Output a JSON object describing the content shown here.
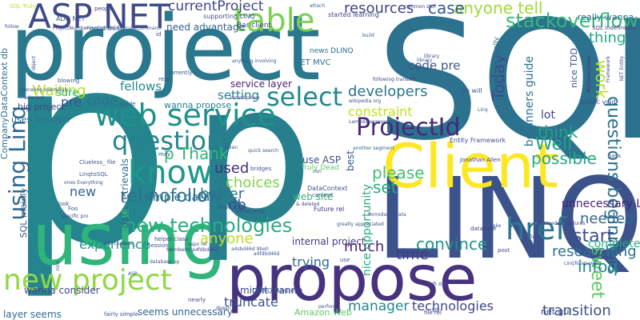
{
  "words": [
    {
      "text": "p",
      "color": "#25858e"
    },
    {
      "text": "SQL",
      "color": "#2c718e"
    },
    {
      "text": "project",
      "color": "#2a788e"
    },
    {
      "text": "using",
      "color": "#2fb47c"
    },
    {
      "text": "LINQ",
      "color": "#3b528b"
    },
    {
      "text": "propose",
      "color": "#46327e"
    },
    {
      "text": "Client",
      "color": "#fde725"
    },
    {
      "text": "p",
      "color": "#277f8e"
    },
    {
      "text": "ASP NET",
      "color": "#3e4a89"
    },
    {
      "text": "table",
      "color": "#7ad151"
    },
    {
      "text": "web service",
      "color": "#21918c"
    },
    {
      "text": "question",
      "color": "#25848e"
    },
    {
      "text": "ProjectId",
      "color": "#482878"
    },
    {
      "text": "href",
      "color": "#2a788e"
    },
    {
      "text": "know",
      "color": "#1f988b"
    },
    {
      "text": "using Linq",
      "color": "#31688e"
    },
    {
      "text": "new project",
      "color": "#8fd744"
    },
    {
      "text": "select",
      "color": "#23898e"
    },
    {
      "text": "new technologies",
      "color": "#28ae80"
    },
    {
      "text": "rel nofollow",
      "color": "#2d708e"
    },
    {
      "text": "stackoverflow",
      "color": "#35b779"
    },
    {
      "text": "anyone tell",
      "color": "#a0da39"
    },
    {
      "text": "case",
      "color": "#38588c"
    },
    {
      "text": "resources",
      "color": "#414487"
    },
    {
      "text": "currentProject",
      "color": "#404688"
    },
    {
      "text": "Today",
      "color": "#3e4989"
    },
    {
      "text": "please",
      "color": "#44bf70"
    },
    {
      "text": "set",
      "color": "#26ad81"
    },
    {
      "text": "p Thank",
      "color": "#31b57b"
    },
    {
      "text": "questions beginners",
      "color": "#2d718e"
    },
    {
      "text": "Well",
      "color": "#20a386"
    },
    {
      "text": "think",
      "color": "#1fa088"
    },
    {
      "text": "possible",
      "color": "#22a785"
    },
    {
      "text": "start",
      "color": "#3d4e8a"
    },
    {
      "text": "work",
      "color": "#b5de2b"
    },
    {
      "text": "sweet",
      "color": "#5ec962"
    },
    {
      "text": "infoq",
      "color": "#23898e"
    },
    {
      "text": "needed",
      "color": "#31688e"
    },
    {
      "text": "convince",
      "color": "#20928c"
    },
    {
      "text": "transition",
      "color": "#3b528b"
    },
    {
      "text": "Waiting",
      "color": "#b8de29"
    },
    {
      "text": "constraint",
      "color": "#c2df23"
    },
    {
      "text": "developers",
      "color": "#2c728e"
    },
    {
      "text": "manager",
      "color": "#24868e"
    },
    {
      "text": "technologies",
      "color": "#3f4788"
    },
    {
      "text": "anyone",
      "color": "#bddf26"
    },
    {
      "text": "experience",
      "color": "#21918c"
    },
    {
      "text": "db",
      "color": "#3b518b"
    },
    {
      "text": "choices",
      "color": "#81d34d"
    },
    {
      "text": "better",
      "color": "#2a768e"
    },
    {
      "text": "simple data",
      "color": "#2d708e"
    },
    {
      "text": "used",
      "color": "#472f7d"
    },
    {
      "text": "time",
      "color": "#443a83"
    },
    {
      "text": "much",
      "color": "#481f70"
    },
    {
      "text": "trying",
      "color": "#2e6e8e"
    },
    {
      "text": "truncate",
      "color": "#3b528b"
    },
    {
      "text": "setting",
      "color": "#287c8e"
    },
    {
      "text": "fellows",
      "color": "#238a8d"
    },
    {
      "text": "code pre",
      "color": "#39568c"
    },
    {
      "text": "code",
      "color": "#2e6d8e"
    },
    {
      "text": "pre",
      "color": "#3b528b"
    },
    {
      "text": "sure",
      "color": "#35b779"
    },
    {
      "text": "thing",
      "color": "#21a685"
    },
    {
      "text": "lot",
      "color": "#3f4889"
    },
    {
      "text": "new",
      "color": "#33638d"
    },
    {
      "text": "researching",
      "color": "#2d708e"
    },
    {
      "text": "completely new",
      "color": "#29af7f"
    },
    {
      "text": "unnecessary Linq",
      "color": "#482475"
    },
    {
      "text": "beginners guide",
      "color": "#2c738e"
    },
    {
      "text": "nice opportunity",
      "color": "#25ab82"
    },
    {
      "text": "data retrievals",
      "color": "#2f6c8e"
    },
    {
      "text": "CompanyDataContext db",
      "color": "#2c728e"
    },
    {
      "text": "really wanna",
      "color": "#2d708e"
    },
    {
      "text": "need advantage",
      "color": "#33638d"
    },
    {
      "text": "service layer",
      "color": "#481f70"
    },
    {
      "text": "internal project",
      "color": "#453882"
    },
    {
      "text": "wanna propose",
      "color": "#26818e"
    },
    {
      "text": "wanna consider",
      "color": "#3e4989"
    },
    {
      "text": "layer seems",
      "color": "#2f6c8e"
    },
    {
      "text": "seems unnecessary",
      "color": "#33638d"
    },
    {
      "text": "might wanna",
      "color": "#414487"
    },
    {
      "text": "use ASP",
      "color": "#3d4e8a"
    },
    {
      "text": "web site",
      "color": "#35b779"
    },
    {
      "text": "best",
      "color": "#39568c"
    },
    {
      "text": "uses Amazon",
      "color": "#2e6f8e"
    },
    {
      "text": "big project",
      "color": "#414487"
    },
    {
      "text": "Amazon Web",
      "color": "#5ec962"
    },
    {
      "text": "net gui",
      "color": "#3e4a89"
    },
    {
      "text": "nice TDD",
      "color": "#3a548c"
    },
    {
      "text": "SQL mainly",
      "color": "#39568c"
    },
    {
      "text": "Entity Framework",
      "color": "#3b528b"
    },
    {
      "text": "Truly Dead",
      "color": "#5ec962"
    },
    {
      "text": "NET MVC",
      "color": "#2e6e8e"
    },
    {
      "text": "DataContext",
      "color": "#39568c"
    },
    {
      "text": "news DLINQ",
      "color": "#2e6f8e"
    },
    {
      "text": "supporting LINQ",
      "color": "#3b528b"
    },
    {
      "text": "Bar client",
      "color": "#414487"
    },
    {
      "text": "started learning",
      "color": "#3f4788"
    },
    {
      "text": "public void",
      "color": "#3b528b"
    },
    {
      "text": "op will",
      "color": "#38598c"
    },
    {
      "text": "SQL indefinitely",
      "color": "#443983"
    },
    {
      "text": "ADO NET",
      "color": "#39568c"
    },
    {
      "text": "good thing",
      "color": "#33638d"
    },
    {
      "text": "manager actually",
      "color": "#2e6f8e"
    },
    {
      "text": "Future rel",
      "color": "#46327e"
    },
    {
      "text": "DLINQ Future",
      "color": "#33638d"
    },
    {
      "text": "aspx rel",
      "color": "#3e4989"
    },
    {
      "text": "dead end",
      "color": "#3b528b"
    },
    {
      "text": "stored procs",
      "color": "#414487"
    },
    {
      "text": "LinqtoSQL",
      "color": "#39568c"
    },
    {
      "text": "Clueless_ file",
      "color": "#3b528b"
    },
    {
      "text": "file rel",
      "color": "#46327e"
    },
    {
      "text": "perfore",
      "color": "#3b528b"
    },
    {
      "text": "database",
      "color": "#414487"
    },
    {
      "text": "helper class",
      "color": "#3e4989"
    },
    {
      "text": "Session",
      "color": "#39568c"
    },
    {
      "text": "YourContext ExecuteCommand",
      "color": "#3b528b"
    },
    {
      "text": "ProjectNumber",
      "color": "#414487"
    },
    {
      "text": "Jonathan Allen",
      "color": "#453882"
    },
    {
      "text": "Lambda expression",
      "color": "#3b528b"
    },
    {
      "text": "wikipedia org",
      "color": "#39568c"
    },
    {
      "text": "another segment",
      "color": "#33638d"
    },
    {
      "text": "MyDataContext",
      "color": "#46327e"
    },
    {
      "text": "NET Entity",
      "color": "#3e4989"
    },
    {
      "text": "Framework",
      "color": "#414487"
    },
    {
      "text": "greatly appreciated",
      "color": "#3b528b"
    },
    {
      "text": "formidable data",
      "color": "#39568c"
    },
    {
      "text": "Linq",
      "color": "#33638d"
    },
    {
      "text": "operating seemingly",
      "color": "#39568c"
    },
    {
      "text": "follow",
      "color": "#3b528b"
    },
    {
      "text": "id",
      "color": "#414487"
    },
    {
      "text": "read",
      "color": "#3b528b"
    },
    {
      "text": "currently",
      "color": "#39568c"
    },
    {
      "text": "attach",
      "color": "#33638d"
    },
    {
      "text": "people",
      "color": "#3e4989"
    },
    {
      "text": "SQL Truly",
      "color": "#bddf26"
    },
    {
      "text": "pass",
      "color": "#3b528b"
    },
    {
      "text": "may",
      "color": "#414487"
    },
    {
      "text": "mean",
      "color": "#39568c"
    },
    {
      "text": "bridges",
      "color": "#3b528b"
    },
    {
      "text": "quick search",
      "color": "#39568c"
    },
    {
      "text": "con",
      "color": "#3e4989"
    },
    {
      "text": "convert",
      "color": "#3b528b"
    },
    {
      "text": "& deleted",
      "color": "#414487"
    },
    {
      "text": "Foo",
      "color": "#3b528b"
    },
    {
      "text": "look",
      "color": "#39568c"
    },
    {
      "text": "specific pro",
      "color": "#414487"
    },
    {
      "text": "ones Everything",
      "color": "#3b528b"
    },
    {
      "text": "post",
      "color": "#414487"
    },
    {
      "text": "make",
      "color": "#39568c"
    },
    {
      "text": "Days",
      "color": "#3b528b"
    },
    {
      "text": "wiki Clueless_",
      "color": "#3e4989"
    },
    {
      "text": "uh oh",
      "color": "#3b528b"
    },
    {
      "text": "nearly",
      "color": "#414487"
    },
    {
      "text": "Uh",
      "color": "#39568c"
    },
    {
      "text": "fairly simple",
      "color": "#3b528b"
    },
    {
      "text": "stored procedures",
      "color": "#414487"
    },
    {
      "text": "LinqToSql ones",
      "color": "#3b528b"
    },
    {
      "text": "database op",
      "color": "#39568c"
    },
    {
      "text": "library",
      "color": "#3b528b"
    },
    {
      "text": "following transact",
      "color": "#414487"
    },
    {
      "text": "anything involving",
      "color": "#39568c"
    },
    {
      "text": "build",
      "color": "#3b528b"
    },
    {
      "text": "common stuf",
      "color": "#414487"
    },
    {
      "text": "object",
      "color": "#3b528b"
    },
    {
      "text": "blowing",
      "color": "#39568c"
    },
    {
      "text": "selected",
      "color": "#3e4989"
    },
    {
      "text": "stored proce",
      "color": "#414487"
    },
    {
      "text": "a4fdbd46d",
      "color": "#3b528b"
    },
    {
      "text": "a4sbd46d 9be0",
      "color": "#39568c"
    },
    {
      "text": "MemberId a4fdbd46d",
      "color": "#414487"
    },
    {
      "text": "nice",
      "color": "#3b528b"
    },
    {
      "text": "guide",
      "color": "#39568c"
    },
    {
      "text": "use",
      "color": "#3b528b"
    },
    {
      "text": "doesn",
      "color": "#414487"
    },
    {
      "text": "ASP",
      "color": "#39568c"
    },
    {
      "text": "library",
      "color": "#3b528b"
    }
  ]
}
